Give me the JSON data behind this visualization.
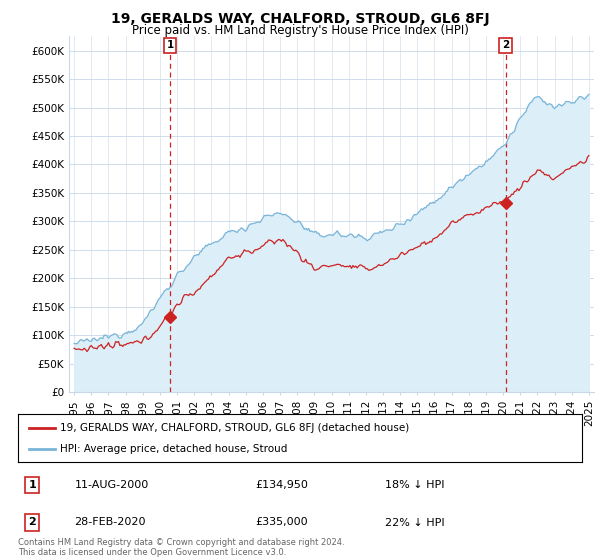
{
  "title": "19, GERALDS WAY, CHALFORD, STROUD, GL6 8FJ",
  "subtitle": "Price paid vs. HM Land Registry's House Price Index (HPI)",
  "ylabel_ticks": [
    "£0",
    "£50K",
    "£100K",
    "£150K",
    "£200K",
    "£250K",
    "£300K",
    "£350K",
    "£400K",
    "£450K",
    "£500K",
    "£550K",
    "£600K"
  ],
  "ytick_values": [
    0,
    50000,
    100000,
    150000,
    200000,
    250000,
    300000,
    350000,
    400000,
    450000,
    500000,
    550000,
    600000
  ],
  "ylim": [
    0,
    625000
  ],
  "hpi_color": "#7ab4d8",
  "hpi_fill_color": "#dceef7",
  "price_color": "#cc2222",
  "marker1_year": 2000.6,
  "marker2_year": 2020.15,
  "sale1_price": 134950,
  "sale2_price": 335000,
  "sale1": {
    "label": "1",
    "date": "11-AUG-2000",
    "price": "£134,950",
    "info": "18% ↓ HPI"
  },
  "sale2": {
    "label": "2",
    "date": "28-FEB-2020",
    "price": "£335,000",
    "info": "22% ↓ HPI"
  },
  "legend_line1": "19, GERALDS WAY, CHALFORD, STROUD, GL6 8FJ (detached house)",
  "legend_line2": "HPI: Average price, detached house, Stroud",
  "footer": "Contains HM Land Registry data © Crown copyright and database right 2024.\nThis data is licensed under the Open Government Licence v3.0.",
  "background_color": "#ffffff",
  "grid_color": "#c8d8e8"
}
